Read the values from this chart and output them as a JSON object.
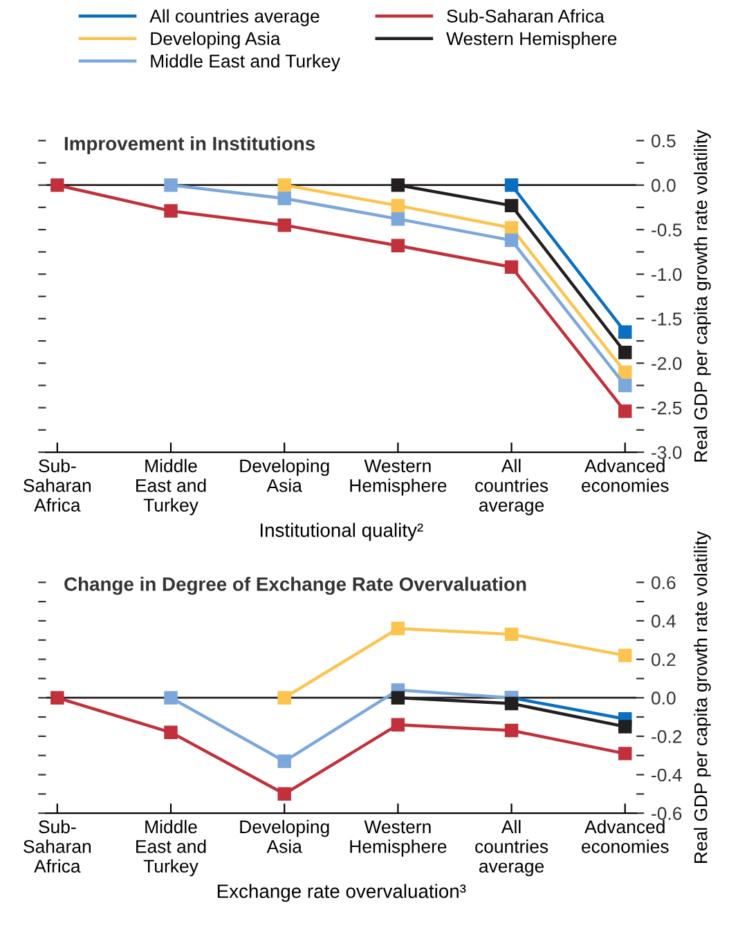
{
  "chart_data": [
    {
      "type": "line",
      "title": "Improvement in Institutions",
      "xlabel": "Institutional quality²",
      "ylabel": "Real GDP per capita growth rate volatility",
      "categories": [
        "Sub-\nSaharan\nAfrica",
        "Middle\nEast and\nTurkey",
        "Developing\nAsia",
        "Western\nHemisphere",
        "All\ncountries\naverage",
        "Advanced\neconomies"
      ],
      "series": [
        {
          "name": "All countries average",
          "color": "#0a6fc2",
          "values": [
            null,
            null,
            null,
            null,
            0,
            -1.65
          ]
        },
        {
          "name": "Sub-Saharan Africa",
          "color": "#c1303b",
          "values": [
            0,
            -0.29,
            -0.45,
            -0.68,
            -0.92,
            -2.54
          ]
        },
        {
          "name": "Developing Asia",
          "color": "#fcc44e",
          "values": [
            null,
            null,
            0,
            -0.23,
            -0.48,
            -2.1
          ]
        },
        {
          "name": "Western Hemisphere",
          "color": "#231f20",
          "values": [
            null,
            null,
            null,
            0,
            -0.23,
            -1.88
          ]
        },
        {
          "name": "Middle East and Turkey",
          "color": "#7ba7dc",
          "values": [
            null,
            0,
            -0.15,
            -0.38,
            -0.62,
            -2.25
          ]
        }
      ],
      "ylim": [
        -3.0,
        0.5
      ],
      "yticks": [
        {
          "value": 0.5,
          "label": "0.5"
        },
        {
          "value": 0.25,
          "label": null
        },
        {
          "value": 0,
          "label": "0.0"
        },
        {
          "value": -0.25,
          "label": null
        },
        {
          "value": -0.5,
          "label": "-0.5"
        },
        {
          "value": -0.75,
          "label": null
        },
        {
          "value": -1.0,
          "label": "-1.0"
        },
        {
          "value": -1.25,
          "label": null
        },
        {
          "value": -1.5,
          "label": "-1.5"
        },
        {
          "value": -1.75,
          "label": null
        },
        {
          "value": -2.0,
          "label": "-2.0"
        },
        {
          "value": -2.25,
          "label": null
        },
        {
          "value": -2.5,
          "label": "-2.5"
        },
        {
          "value": -2.75,
          "label": null
        },
        {
          "value": -3.0,
          "label": "-3.0"
        }
      ],
      "ref_lines": [
        {
          "axis": "y",
          "value": 0,
          "color": "#231f20"
        }
      ],
      "marker": "square",
      "grid": false,
      "legend": "top"
    },
    {
      "type": "line",
      "title": "Change in Degree of Exchange Rate Overvaluation",
      "xlabel": "Exchange rate overvaluation³",
      "ylabel": "Real GDP per capita growth rate volatility",
      "categories": [
        "Sub-\nSaharan\nAfrica",
        "Middle\nEast and\nTurkey",
        "Developing\nAsia",
        "Western\nHemisphere",
        "All\ncountries\naverage",
        "Advanced\neconomies"
      ],
      "series": [
        {
          "color": "#0a6fc2",
          "values": [
            null,
            null,
            null,
            null,
            0,
            -0.11
          ]
        },
        {
          "color": "#c1303b",
          "values": [
            0,
            -0.18,
            -0.5,
            -0.14,
            -0.17,
            -0.29
          ]
        },
        {
          "color": "#fcc44e",
          "values": [
            null,
            null,
            0,
            0.36,
            0.33,
            0.22
          ]
        },
        {
          "color": "#7ba7dc",
          "values": [
            null,
            0,
            -0.33,
            0.04,
            0,
            null
          ]
        },
        {
          "color": "#231f20",
          "values": [
            null,
            null,
            null,
            0,
            -0.03,
            -0.15
          ]
        }
      ],
      "ylim": [
        -0.6,
        0.6
      ],
      "yticks": [
        {
          "value": 0.6,
          "label": "0.6"
        },
        {
          "value": 0.5,
          "label": null
        },
        {
          "value": 0.4,
          "label": "0.4"
        },
        {
          "value": 0.3,
          "label": null
        },
        {
          "value": 0.2,
          "label": "0.2"
        },
        {
          "value": 0.1,
          "label": null
        },
        {
          "value": 0,
          "label": "0.0"
        },
        {
          "value": -0.1,
          "label": null
        },
        {
          "value": -0.2,
          "label": "-0.2"
        },
        {
          "value": -0.3,
          "label": null
        },
        {
          "value": -0.4,
          "label": "-0.4"
        },
        {
          "value": -0.5,
          "label": null
        },
        {
          "value": -0.6,
          "label": "-0.6"
        }
      ],
      "ref_lines": [
        {
          "axis": "y",
          "value": 0,
          "color": "#231f20"
        }
      ],
      "marker": "square",
      "grid": false,
      "legend": false
    }
  ]
}
